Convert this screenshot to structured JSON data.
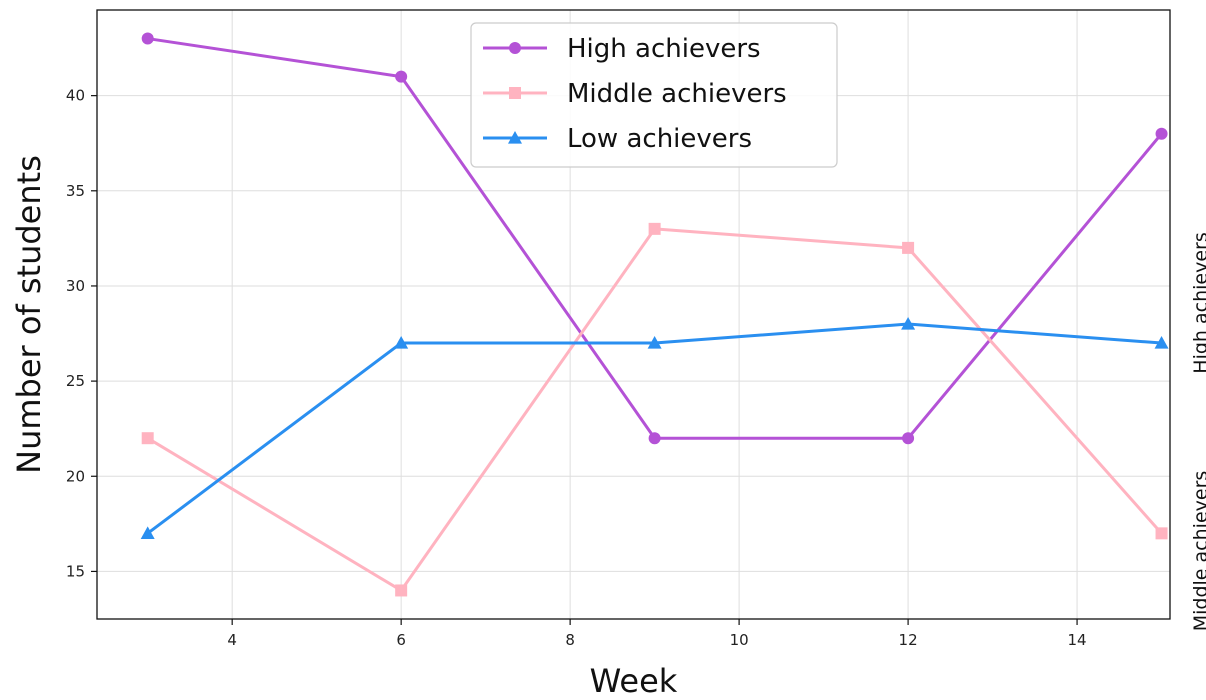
{
  "chart_data": {
    "type": "line",
    "xlabel": "Week",
    "ylabel": "Number of students",
    "x": [
      3,
      6,
      9,
      12,
      15
    ],
    "xlim": [
      2.4,
      15.1
    ],
    "ylim": [
      12.5,
      44.5
    ],
    "xticks": [
      4,
      6,
      8,
      10,
      12,
      14
    ],
    "yticks": [
      15,
      20,
      25,
      30,
      35,
      40
    ],
    "grid": true,
    "legend_position": "top-center",
    "right_labels": [
      "High achievers",
      "Middle achievers"
    ],
    "series": [
      {
        "name": "High achievers",
        "values": [
          43,
          41,
          22,
          22,
          38
        ],
        "color": "#b452d6",
        "marker": "circle"
      },
      {
        "name": "Middle achievers",
        "values": [
          22,
          14,
          33,
          32,
          17
        ],
        "color": "#ffb3c0",
        "marker": "square"
      },
      {
        "name": "Low achievers",
        "values": [
          17,
          27,
          27,
          28,
          27
        ],
        "color": "#2a8ff0",
        "marker": "triangle"
      }
    ]
  }
}
